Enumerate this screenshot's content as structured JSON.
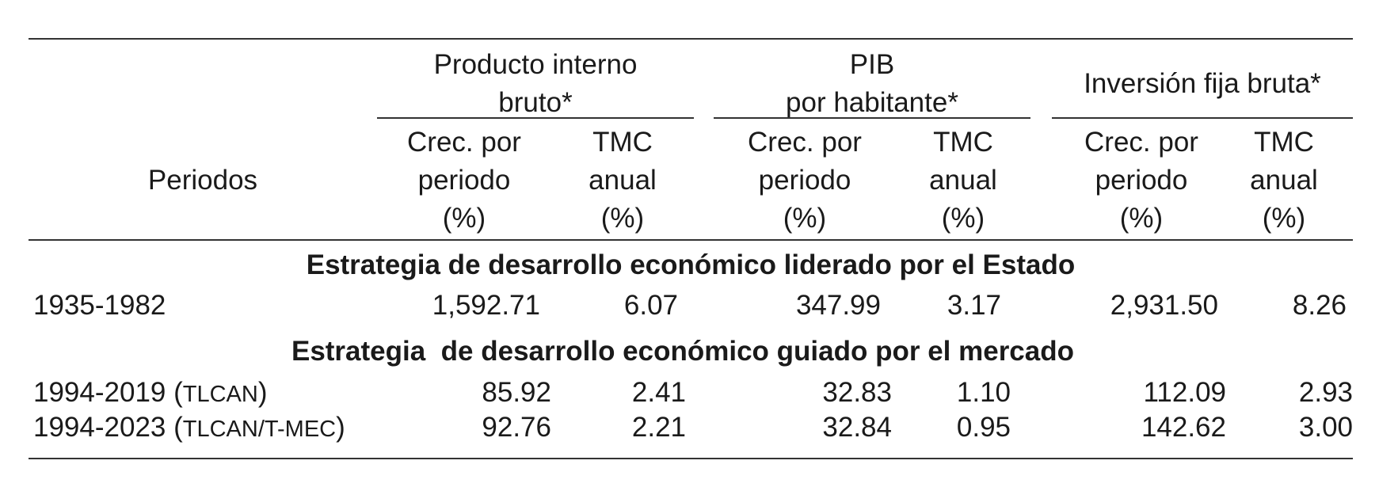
{
  "table": {
    "group_headers": [
      {
        "line1": "Producto interno",
        "line2": "bruto*"
      },
      {
        "line1": "PIB",
        "line2": "por habitante*"
      },
      {
        "line1": "Inversión fija bruta*",
        "line2": ""
      }
    ],
    "row_header_label": "Periodos",
    "sub_headers": {
      "crec": [
        "Crec. por",
        "periodo",
        "(%)"
      ],
      "tmc": [
        "TMC",
        "anual",
        "(%)"
      ]
    },
    "sections": [
      {
        "title": "Estrategia de desarrollo económico liderado por el Estado",
        "rows": [
          {
            "period_main": "1935-1982",
            "period_paren": "",
            "values": [
              "1,592.71",
              "6.07",
              "347.99",
              "3.17",
              "2,931.50",
              "8.26"
            ]
          }
        ]
      },
      {
        "title": "Estrategia  de desarrollo económico guiado por el mercado",
        "rows": [
          {
            "period_main": "1994-2019 (",
            "period_paren": "TLCAN",
            "period_close": ")",
            "values": [
              "85.92",
              "2.41",
              "32.83",
              "1.10",
              "112.09",
              "2.93"
            ]
          },
          {
            "period_main": "1994-2023 (",
            "period_paren": "TLCAN/T-MEC",
            "period_close": ")",
            "values": [
              "92.76",
              "2.21",
              "32.84",
              "0.95",
              "142.62",
              "3.00"
            ]
          }
        ]
      }
    ]
  }
}
